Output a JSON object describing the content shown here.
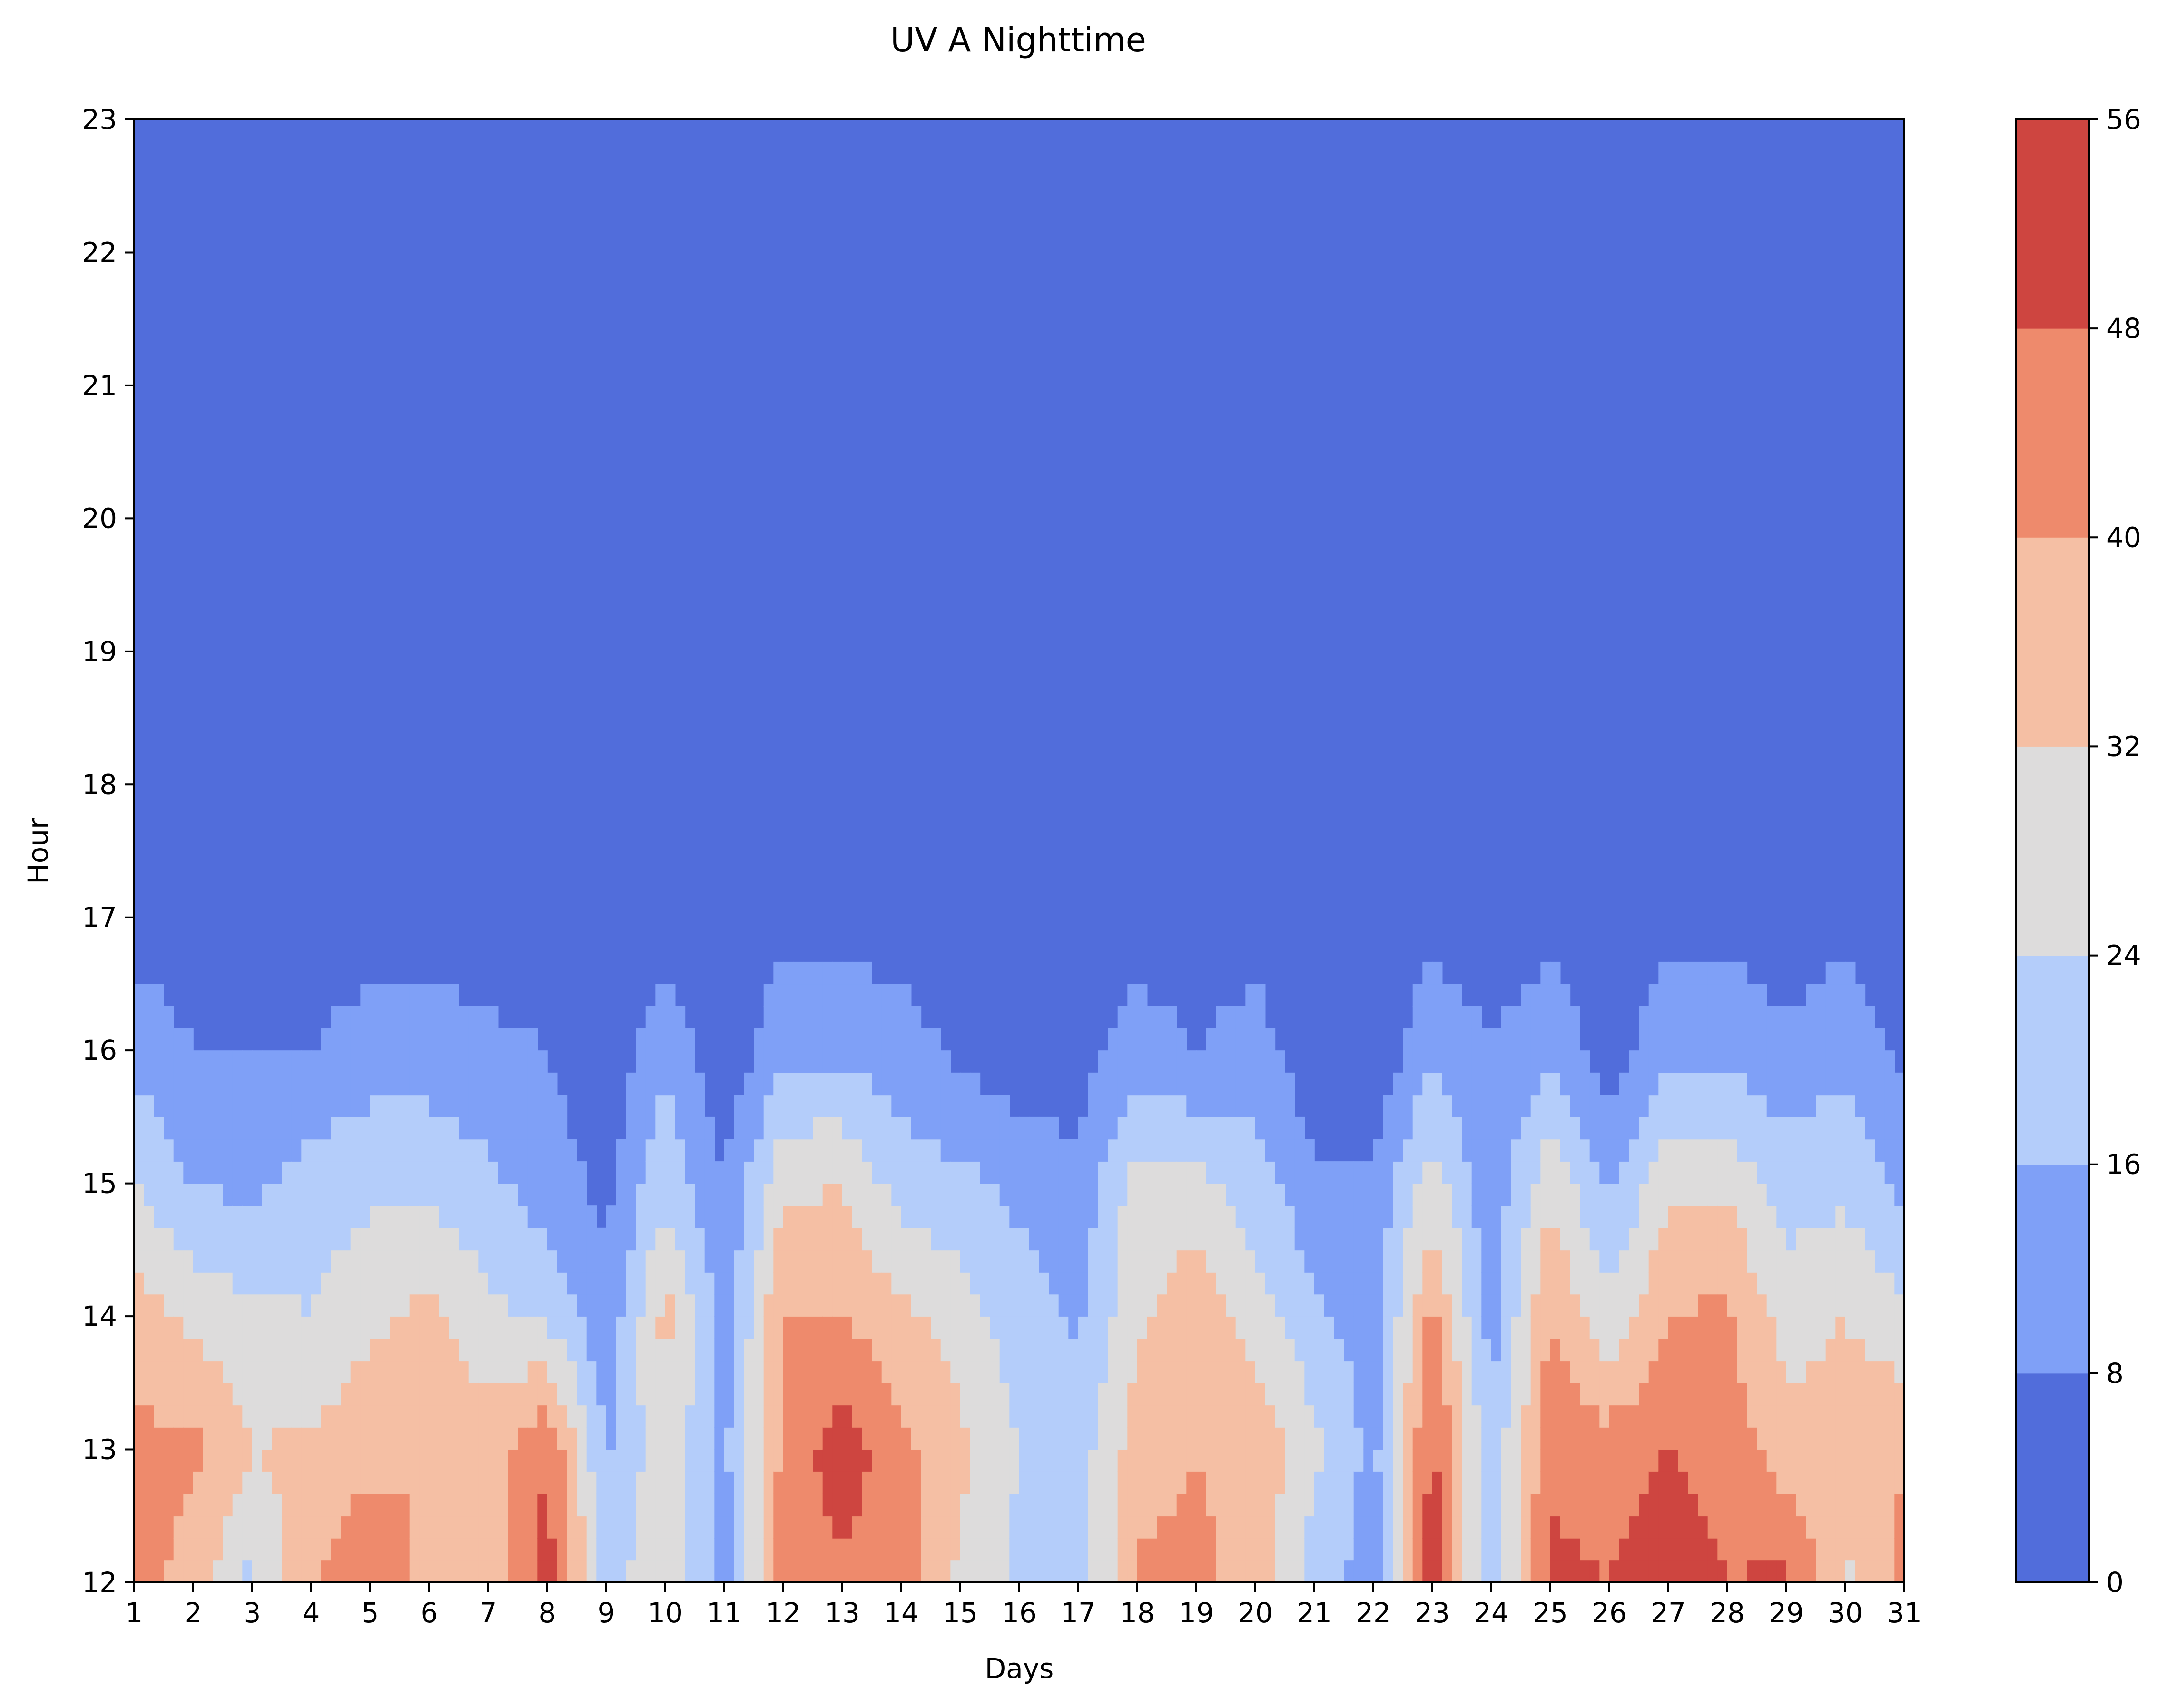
{
  "chart_data": {
    "type": "contour",
    "title": "UV A Nighttime",
    "xlabel": "Days",
    "ylabel": "Hour",
    "xlim": [
      1,
      31
    ],
    "ylim": [
      12,
      23
    ],
    "x": [
      1,
      2,
      3,
      4,
      5,
      6,
      7,
      8,
      9,
      10,
      11,
      12,
      13,
      14,
      15,
      16,
      17,
      18,
      19,
      20,
      21,
      22,
      23,
      24,
      25,
      26,
      27,
      28,
      29,
      30,
      31
    ],
    "y": [
      12,
      13,
      14,
      15,
      16,
      17,
      18,
      19,
      20,
      21,
      22,
      23
    ],
    "x_tick_labels": [
      "1",
      "2",
      "3",
      "4",
      "5",
      "6",
      "7",
      "8",
      "9",
      "10",
      "11",
      "12",
      "13",
      "14",
      "15",
      "16",
      "17",
      "18",
      "19",
      "20",
      "21",
      "22",
      "23",
      "24",
      "25",
      "26",
      "27",
      "28",
      "29",
      "30",
      "31"
    ],
    "y_tick_labels": [
      "12",
      "13",
      "14",
      "15",
      "16",
      "17",
      "18",
      "19",
      "20",
      "21",
      "22",
      "23"
    ],
    "levels": [
      0,
      8,
      16,
      24,
      32,
      40,
      48,
      56
    ],
    "level_colors": [
      "#516ddb",
      "#7fa0f7",
      "#b4cdfa",
      "#dddcdc",
      "#f5bfa4",
      "#ee8a6c",
      "#ce4540"
    ],
    "colorbar_tick_labels": [
      "0",
      "8",
      "16",
      "24",
      "32",
      "40",
      "48",
      "56"
    ],
    "grid": false,
    "z": [
      [
        44,
        36,
        22,
        40,
        46,
        38,
        34,
        52,
        22,
        28,
        12,
        44,
        46,
        44,
        30,
        22,
        18,
        42,
        42,
        36,
        20,
        12,
        54,
        16,
        50,
        48,
        54,
        48,
        50,
        30,
        42
      ],
      [
        42,
        42,
        32,
        34,
        38,
        40,
        36,
        48,
        15,
        30,
        14,
        42,
        53,
        42,
        34,
        24,
        20,
        36,
        40,
        38,
        26,
        13,
        50,
        18,
        46,
        44,
        48,
        44,
        36,
        36,
        40
      ],
      [
        36,
        30,
        26,
        24,
        30,
        34,
        26,
        22,
        10,
        35,
        12,
        40,
        40,
        34,
        28,
        20,
        15,
        30,
        38,
        28,
        18,
        12,
        42,
        12,
        40,
        26,
        40,
        42,
        28,
        32,
        26
      ],
      [
        24,
        16,
        14,
        20,
        22,
        22,
        18,
        12,
        6,
        22,
        8,
        30,
        32,
        20,
        18,
        14,
        10,
        28,
        26,
        20,
        10,
        9,
        28,
        10,
        30,
        14,
        30,
        30,
        20,
        22,
        14
      ],
      [
        14,
        8,
        8,
        8,
        12,
        12,
        10,
        8,
        2,
        14,
        2,
        14,
        14,
        12,
        6,
        2,
        4,
        12,
        8,
        12,
        2,
        2,
        14,
        8,
        14,
        4,
        14,
        14,
        10,
        14,
        6
      ],
      [
        4,
        3,
        3,
        3,
        4,
        4,
        3,
        3,
        1,
        4,
        1,
        5,
        5,
        4,
        2,
        1,
        1,
        4,
        3,
        4,
        1,
        1,
        5,
        3,
        5,
        1,
        5,
        5,
        3,
        5,
        2
      ],
      [
        0,
        0,
        0,
        0,
        0,
        0,
        0,
        0,
        0,
        0,
        0,
        0,
        0,
        0,
        0,
        0,
        0,
        0,
        0,
        0,
        0,
        0,
        0,
        0,
        0,
        0,
        0,
        0,
        0,
        0,
        0
      ],
      [
        0,
        0,
        0,
        0,
        0,
        0,
        0,
        0,
        0,
        0,
        0,
        0,
        0,
        0,
        0,
        0,
        0,
        0,
        0,
        0,
        0,
        0,
        0,
        0,
        0,
        0,
        0,
        0,
        0,
        0,
        0
      ],
      [
        0,
        0,
        0,
        0,
        0,
        0,
        0,
        0,
        0,
        0,
        0,
        0,
        0,
        0,
        0,
        0,
        0,
        0,
        0,
        0,
        0,
        0,
        0,
        0,
        0,
        0,
        0,
        0,
        0,
        0,
        0
      ],
      [
        0,
        0,
        0,
        0,
        0,
        0,
        0,
        0,
        0,
        0,
        0,
        0,
        0,
        0,
        0,
        0,
        0,
        0,
        0,
        0,
        0,
        0,
        0,
        0,
        0,
        0,
        0,
        0,
        0,
        0,
        0
      ],
      [
        0,
        0,
        0,
        0,
        0,
        0,
        0,
        0,
        0,
        0,
        0,
        0,
        0,
        0,
        0,
        0,
        0,
        0,
        0,
        0,
        0,
        0,
        0,
        0,
        0,
        0,
        0,
        0,
        0,
        0,
        0
      ],
      [
        0,
        0,
        0,
        0,
        0,
        0,
        0,
        0,
        0,
        0,
        0,
        0,
        0,
        0,
        0,
        0,
        0,
        0,
        0,
        0,
        0,
        0,
        0,
        0,
        0,
        0,
        0,
        0,
        0,
        0,
        0
      ]
    ]
  }
}
